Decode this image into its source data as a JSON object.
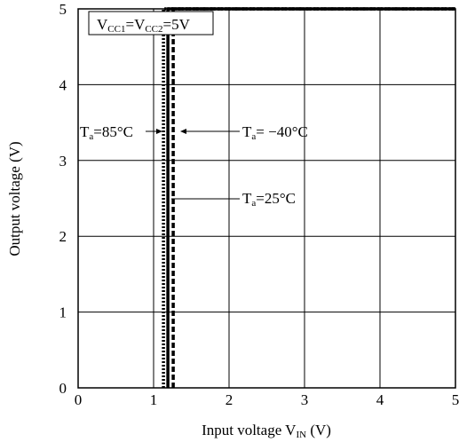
{
  "chart_data": {
    "type": "line",
    "title": "",
    "xlabel": {
      "main": "Input voltage V",
      "sub": "IN",
      "unit": " (V)"
    },
    "ylabel": "Output voltage (V)",
    "xlim": [
      0,
      5
    ],
    "ylim": [
      0,
      5
    ],
    "x_ticks": [
      "0",
      "1",
      "2",
      "3",
      "4",
      "5"
    ],
    "y_ticks": [
      "0",
      "1",
      "2",
      "3",
      "4",
      "5"
    ],
    "grid": true,
    "condition": {
      "v1": "V",
      "s1": "CC1",
      "eq1": "=",
      "v2": "V",
      "s2": "CC2",
      "eq2": "=5V"
    },
    "series": [
      {
        "name": "Ta=85°C",
        "style": "dotted",
        "x": [
          1.13,
          1.13,
          5
        ],
        "y": [
          0,
          5,
          5
        ]
      },
      {
        "name": "Ta=25°C",
        "style": "solid",
        "x": [
          1.19,
          1.19,
          5
        ],
        "y": [
          0,
          5,
          5
        ]
      },
      {
        "name": "Ta=−40°C",
        "style": "dashed",
        "x": [
          1.26,
          1.26,
          5
        ],
        "y": [
          0,
          5,
          5
        ]
      }
    ],
    "annotations": [
      {
        "t": "T",
        "s": "a",
        "v": "=85°C"
      },
      {
        "t": "T",
        "s": "a",
        "v": "= −40°C"
      },
      {
        "t": "T",
        "s": "a",
        "v": "=25°C"
      }
    ]
  }
}
